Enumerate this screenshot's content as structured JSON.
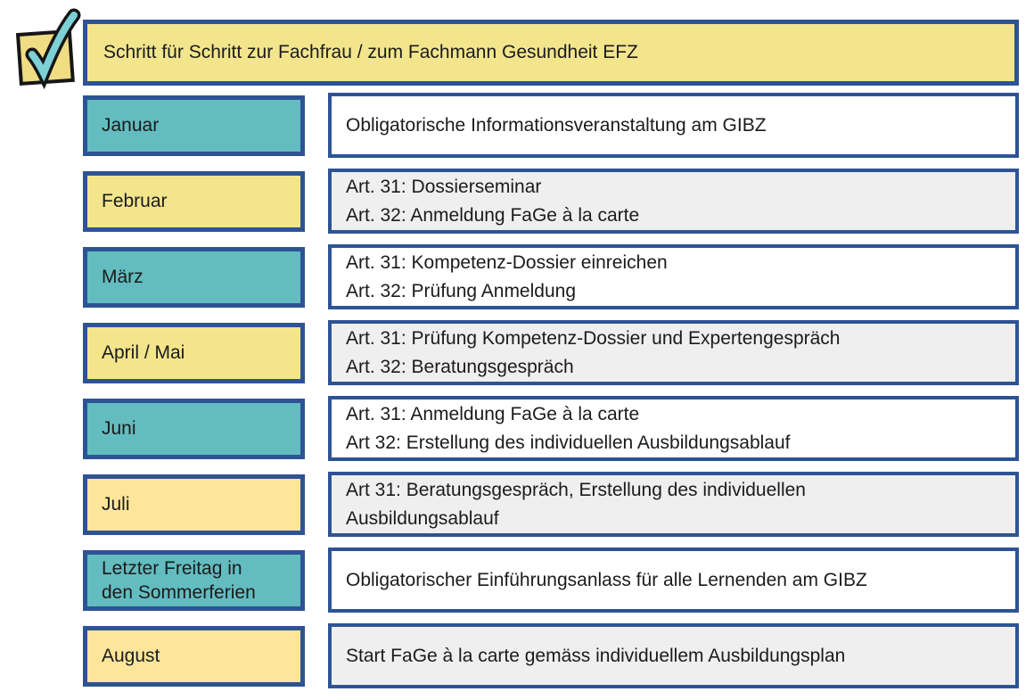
{
  "header": {
    "title": "Schritt für Schritt zur Fachfrau / zum Fachmann Gesundheit EFZ"
  },
  "icon": {
    "name": "checkmark-note-icon"
  },
  "colors": {
    "teal": "#63BCC0",
    "yellow": "#F3E58C",
    "gold": "#FDE59B",
    "white": "#FFFFFF",
    "grey": "#EFEFEF",
    "border": "#2E5395",
    "note_yellow": "#F0DC82",
    "check_teal": "#7CD0D6"
  },
  "schedule": {
    "rows": [
      {
        "month": "Januar",
        "month_color": "teal",
        "content_bg": "white",
        "lines": [
          "Obligatorische Informationsveranstaltung am GIBZ"
        ]
      },
      {
        "month": "Februar",
        "month_color": "yellow",
        "content_bg": "grey",
        "lines": [
          "Art. 31: Dossierseminar",
          "Art. 32: Anmeldung FaGe à la carte"
        ]
      },
      {
        "month": "März",
        "month_color": "teal",
        "content_bg": "white",
        "lines": [
          "Art. 31: Kompetenz-Dossier einreichen",
          "Art. 32: Prüfung Anmeldung"
        ]
      },
      {
        "month": "April / Mai",
        "month_color": "yellow",
        "content_bg": "grey",
        "lines": [
          "Art. 31: Prüfung Kompetenz-Dossier und Expertengespräch",
          "Art. 32: Beratungsgespräch"
        ]
      },
      {
        "month": "Juni",
        "month_color": "teal",
        "content_bg": "white",
        "lines": [
          "Art. 31: Anmeldung FaGe à la carte",
          "Art 32: Erstellung des individuellen Ausbildungsablauf"
        ]
      },
      {
        "month": "Juli",
        "month_color": "gold",
        "content_bg": "grey",
        "lines": [
          "Art 31: Beratungsgespräch, Erstellung des individuellen",
          "Ausbildungsablauf"
        ]
      },
      {
        "month": "Letzter Freitag in den Sommerferien",
        "month_color": "teal",
        "content_bg": "white",
        "lines": [
          "Obligatorischer Einführungsanlass für alle Lernenden am GIBZ"
        ]
      },
      {
        "month": "August",
        "month_color": "gold",
        "content_bg": "grey",
        "lines": [
          "Start FaGe à la carte gemäss individuellem Ausbildungsplan"
        ]
      }
    ]
  }
}
